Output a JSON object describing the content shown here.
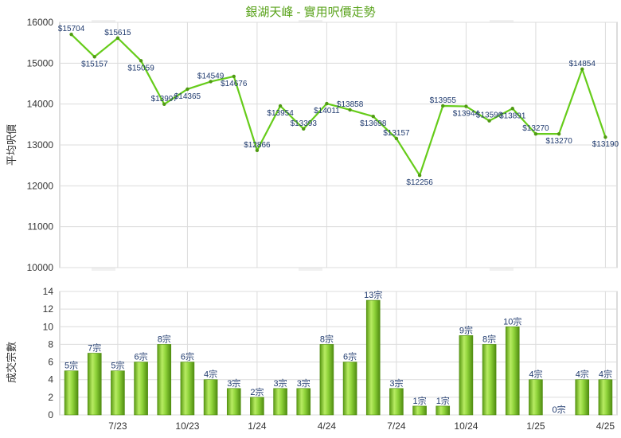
{
  "chart_data": [
    {
      "type": "line",
      "title": "銀湖天峰 - 實用呎價走勢",
      "ylabel": "平均呎價",
      "ylim": [
        10000,
        16000
      ],
      "yticks": [
        10000,
        11000,
        12000,
        13000,
        14000,
        15000,
        16000
      ],
      "xticks": [
        "7/23",
        "10/23",
        "1/24",
        "4/24",
        "7/24",
        "10/24",
        "1/25",
        "4/25"
      ],
      "grid": true,
      "x": [
        "5/23",
        "6/23",
        "7/23",
        "8/23",
        "9/23",
        "10/23",
        "11/23",
        "12/23",
        "1/24",
        "2/24",
        "3/24",
        "4/24",
        "5/24",
        "6/24",
        "7/24",
        "8/24",
        "9/24",
        "10/24",
        "11/24",
        "12/24",
        "1/25",
        "2/25",
        "3/25",
        "4/25"
      ],
      "values": [
        15704,
        15157,
        15615,
        15059,
        13997,
        14365,
        14549,
        14676,
        12866,
        13954,
        13393,
        14011,
        13858,
        13698,
        13157,
        12256,
        13955,
        13944,
        13590,
        13891,
        13270,
        13270,
        14854,
        13190
      ],
      "point_labels": [
        "$15704",
        "$15157",
        "$15615",
        "$15059",
        "$13997",
        "$14365",
        "$14549",
        "$14676",
        "$12866",
        "$13954",
        "$13393",
        "$14011",
        "$13858",
        "$13698",
        "$13157",
        "$12256",
        "$13955",
        "$13944",
        "$13590",
        "$13891",
        "$13270",
        "$13270",
        "$14854",
        "$13190"
      ],
      "color": "#66cc1a"
    },
    {
      "type": "bar",
      "ylabel": "成交宗數",
      "ylim": [
        0,
        14
      ],
      "yticks": [
        0,
        2,
        4,
        6,
        8,
        10,
        12,
        14
      ],
      "xticks": [
        "7/23",
        "10/23",
        "1/24",
        "4/24",
        "7/24",
        "10/24",
        "1/25",
        "4/25"
      ],
      "grid": true,
      "categories": [
        "5/23",
        "6/23",
        "7/23",
        "8/23",
        "9/23",
        "10/23",
        "11/23",
        "12/23",
        "1/24",
        "2/24",
        "3/24",
        "4/24",
        "5/24",
        "6/24",
        "7/24",
        "8/24",
        "9/24",
        "10/24",
        "11/24",
        "12/24",
        "1/25",
        "2/25",
        "3/25",
        "4/25"
      ],
      "values": [
        5,
        7,
        5,
        6,
        8,
        6,
        4,
        3,
        2,
        3,
        3,
        8,
        6,
        13,
        3,
        1,
        1,
        9,
        8,
        10,
        4,
        0,
        4,
        4
      ],
      "bar_labels": [
        "5宗",
        "7宗",
        "5宗",
        "6宗",
        "8宗",
        "6宗",
        "4宗",
        "3宗",
        "2宗",
        "3宗",
        "3宗",
        "8宗",
        "6宗",
        "13宗",
        "3宗",
        "1宗",
        "1宗",
        "9宗",
        "8宗",
        "10宗",
        "4宗",
        "0宗",
        "4宗",
        "4宗"
      ],
      "color": "#7bc424"
    }
  ]
}
